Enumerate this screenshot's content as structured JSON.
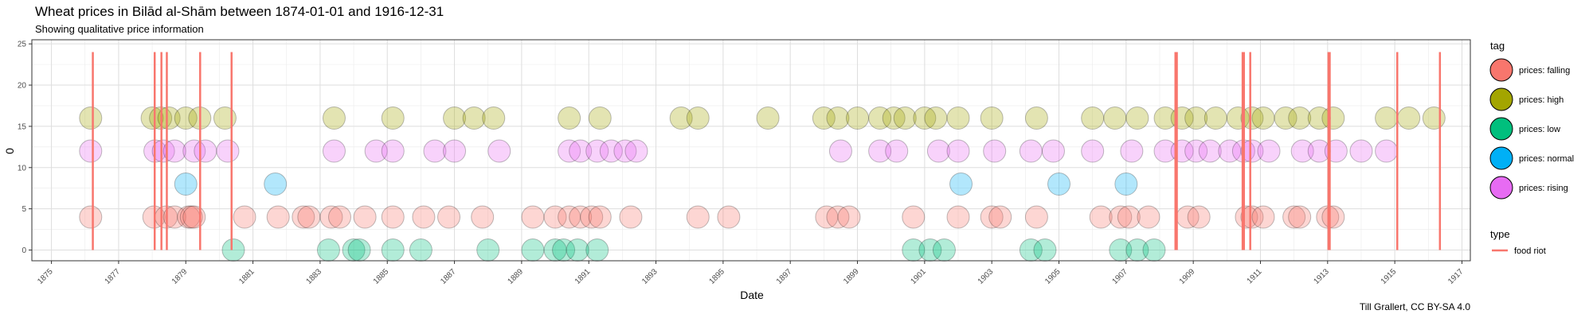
{
  "chart_data": {
    "type": "scatter",
    "title": "Wheat prices in Bilād al-Shām between 1874-01-01 and 1916-12-31",
    "subtitle": "Showing qualitative price information",
    "xlabel": "Date",
    "ylabel": "0",
    "caption": "Till Grallert, CC BY-SA 4.0",
    "xlim": [
      "1874-06-01",
      "1917-04-01"
    ],
    "ylim": [
      -1.3,
      25.5
    ],
    "x_ticks": [
      "1875",
      "1877",
      "1879",
      "1881",
      "1883",
      "1885",
      "1887",
      "1889",
      "1891",
      "1893",
      "1895",
      "1897",
      "1899",
      "1901",
      "1903",
      "1905",
      "1907",
      "1909",
      "1911",
      "1913",
      "1915",
      "1917"
    ],
    "y_ticks": [
      "0",
      "5",
      "10",
      "15",
      "20",
      "25"
    ],
    "grid": true,
    "legend_placement": "right",
    "legend_tag_title": "tag",
    "legend_type_title": "type",
    "series": [
      {
        "name": "prices: falling",
        "color": "#F8766D",
        "y": 4,
        "x": [
          "1876-03-01",
          "1878-01-20",
          "1878-06-01",
          "1878-09-01",
          "1879-02-01",
          "1879-03-01",
          "1879-04-01",
          "1880-10-01",
          "1881-10-01",
          "1882-07-01",
          "1882-09-01",
          "1883-05-01",
          "1883-08-01",
          "1884-05-01",
          "1885-03-01",
          "1886-02-01",
          "1886-11-01",
          "1887-11-01",
          "1889-05-01",
          "1890-01-01",
          "1890-06-01",
          "1890-10-01",
          "1891-02-01",
          "1891-05-01",
          "1892-04-01",
          "1894-04-01",
          "1895-03-01",
          "1898-02-01",
          "1898-06-01",
          "1898-10-01",
          "1900-09-01",
          "1902-01-01",
          "1903-01-01",
          "1903-04-01",
          "1904-05-01",
          "1906-04-01",
          "1906-11-01",
          "1907-02-01",
          "1907-09-01",
          "1908-11-01",
          "1909-03-01",
          "1910-08-01",
          "1910-10-01",
          "1911-02-01",
          "1912-01-01",
          "1912-03-01",
          "1913-01-01",
          "1913-03-01"
        ]
      },
      {
        "name": "prices: high",
        "color": "#A3A500",
        "y": 16,
        "x": [
          "1876-03-01",
          "1878-01-01",
          "1878-04-01",
          "1878-07-01",
          "1879-01-01",
          "1879-06-01",
          "1880-03-01",
          "1883-06-01",
          "1885-03-01",
          "1887-01-01",
          "1887-08-01",
          "1888-03-01",
          "1890-06-01",
          "1891-05-01",
          "1893-10-01",
          "1894-04-01",
          "1896-05-01",
          "1898-00-01",
          "1898-06-01",
          "1899-01-01",
          "1899-09-01",
          "1900-02-01",
          "1900-06-01",
          "1901-01-01",
          "1901-05-01",
          "1902-01-01",
          "1903-01-01",
          "1904-05-01",
          "1906-01-01",
          "1906-09-01",
          "1907-05-01",
          "1908-03-01",
          "1908-09-01",
          "1909-02-01",
          "1909-09-01",
          "1910-05-01",
          "1910-10-01",
          "1911-02-01",
          "1911-10-01",
          "1912-03-01",
          "1912-10-01",
          "1913-03-01",
          "1914-10-01",
          "1915-06-01",
          "1916-03-01"
        ]
      },
      {
        "name": "prices: low",
        "color": "#00BF7D",
        "y": 0,
        "x": [
          "1880-06-01",
          "1883-04-01",
          "1884-01-01",
          "1884-03-01",
          "1885-03-01",
          "1886-01-01",
          "1888-01-01",
          "1889-05-01",
          "1890-01-01",
          "1890-04-01",
          "1890-09-01",
          "1891-04-01",
          "1900-09-01",
          "1901-03-01",
          "1901-08-01",
          "1904-03-01",
          "1904-08-01",
          "1906-11-01",
          "1907-05-01",
          "1907-11-01"
        ]
      },
      {
        "name": "prices: normal",
        "color": "#00B0F6",
        "y": 8,
        "x": [
          "1879-01-01",
          "1881-09-01",
          "1902-02-01",
          "1905-01-01",
          "1907-01-01"
        ]
      },
      {
        "name": "prices: rising",
        "color": "#E76BF3",
        "y": 12,
        "x": [
          "1876-03-01",
          "1878-02-01",
          "1878-05-01",
          "1878-09-01",
          "1879-04-01",
          "1879-08-01",
          "1880-04-01",
          "1883-06-01",
          "1884-09-01",
          "1885-03-01",
          "1886-06-01",
          "1887-01-01",
          "1888-05-01",
          "1890-06-01",
          "1890-10-01",
          "1891-04-01",
          "1891-09-01",
          "1892-02-01",
          "1892-06-01",
          "1898-07-01",
          "1899-09-01",
          "1900-03-01",
          "1901-06-01",
          "1902-01-01",
          "1903-02-01",
          "1904-03-01",
          "1904-11-01",
          "1906-01-01",
          "1907-03-01",
          "1908-03-01",
          "1908-09-01",
          "1909-02-01",
          "1909-07-01",
          "1910-02-01",
          "1910-07-01",
          "1910-10-01",
          "1911-04-01",
          "1912-04-01",
          "1912-10-01",
          "1913-04-01",
          "1914-01-01",
          "1914-10-01"
        ]
      }
    ],
    "events": {
      "name": "food riot",
      "color": "#F8766D",
      "y_range": [
        0,
        24
      ],
      "x": [
        "1876-03-25",
        "1878-01-28",
        "1878-04-10",
        "1878-06-08",
        "1879-06-05",
        "1880-05-12",
        "1908-06-20",
        "1908-07-05",
        "1910-06-20",
        "1910-07-04",
        "1910-09-12",
        "1913-01-10",
        "1913-01-24",
        "1915-01-28",
        "1916-05-05"
      ]
    }
  }
}
